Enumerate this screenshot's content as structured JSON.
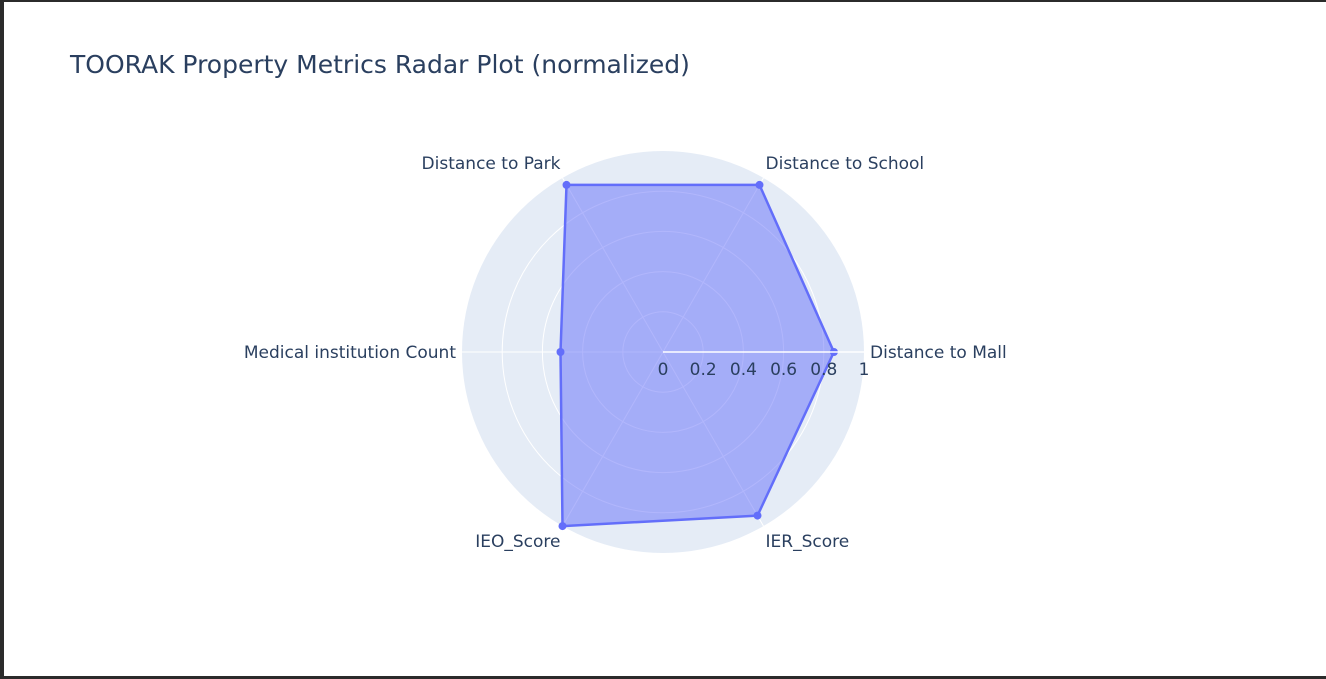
{
  "chart_data": {
    "type": "radar",
    "title": "TOORAK Property Metrics Radar Plot (normalized)",
    "theta": [
      "Distance to Mall",
      "Distance to School",
      "Distance to Park",
      "Medical institution Count",
      "IEO_Score",
      "IER_Score"
    ],
    "r": [
      0.85,
      0.96,
      0.96,
      0.51,
      1.0,
      0.94
    ],
    "radial_range": [
      0,
      1
    ],
    "radial_ticks": [
      "0",
      "0.2",
      "0.4",
      "0.6",
      "0.8",
      "1"
    ],
    "radial_tick_values": [
      0,
      0.2,
      0.4,
      0.6,
      0.8,
      1
    ],
    "grid": true,
    "fill": "toself",
    "colors": {
      "line": "#636efa",
      "fill": "rgba(99,110,250,0.5)",
      "polar_background": "#e5ecf6",
      "grid": "#ffffff",
      "text": "#2a3f5f"
    }
  }
}
